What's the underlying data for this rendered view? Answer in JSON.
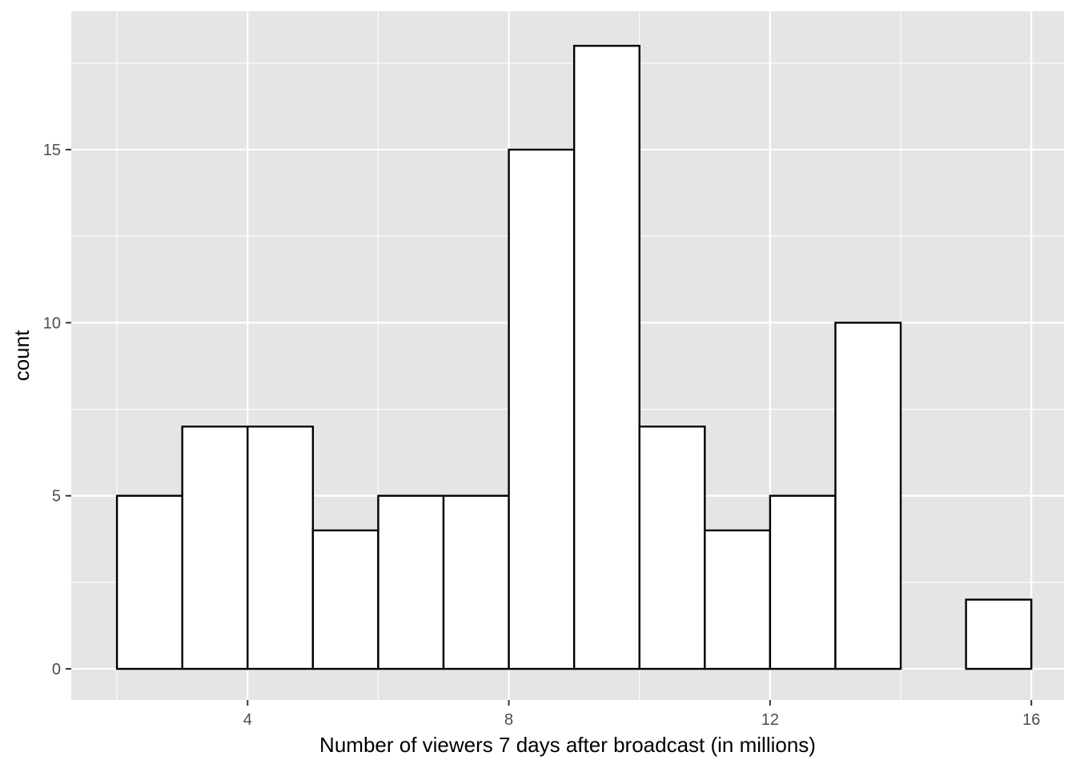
{
  "chart_data": {
    "type": "bar",
    "subtype": "histogram",
    "title": "",
    "xlabel": "Number of viewers 7 days after broadcast (in millions)",
    "ylabel": "count",
    "bins": [
      {
        "x0": 2,
        "x1": 3,
        "count": 5
      },
      {
        "x0": 3,
        "x1": 4,
        "count": 7
      },
      {
        "x0": 4,
        "x1": 5,
        "count": 7
      },
      {
        "x0": 5,
        "x1": 6,
        "count": 4
      },
      {
        "x0": 6,
        "x1": 7,
        "count": 5
      },
      {
        "x0": 7,
        "x1": 8,
        "count": 5
      },
      {
        "x0": 8,
        "x1": 9,
        "count": 15
      },
      {
        "x0": 9,
        "x1": 10,
        "count": 18
      },
      {
        "x0": 10,
        "x1": 11,
        "count": 7
      },
      {
        "x0": 11,
        "x1": 12,
        "count": 4
      },
      {
        "x0": 12,
        "x1": 13,
        "count": 5
      },
      {
        "x0": 13,
        "x1": 14,
        "count": 10
      },
      {
        "x0": 14,
        "x1": 15,
        "count": 0
      },
      {
        "x0": 15,
        "x1": 16,
        "count": 2
      }
    ],
    "xlim": [
      1.3,
      16.5
    ],
    "ylim": [
      -0.9,
      19.0
    ],
    "x_major_ticks": [
      4,
      8,
      12,
      16
    ],
    "x_minor_ticks": [
      2,
      6,
      10,
      14
    ],
    "y_major_ticks": [
      0,
      5,
      10,
      15
    ],
    "y_minor_ticks": [
      2.5,
      7.5,
      12.5,
      17.5
    ],
    "x_tick_labels": [
      "4",
      "8",
      "12",
      "16"
    ],
    "y_tick_labels": [
      "0",
      "5",
      "10",
      "15"
    ],
    "grid": true,
    "legend": "none",
    "colors": {
      "panel_background": "#e5e5e5",
      "grid_line": "#ffffff",
      "bar_fill": "#ffffff",
      "bar_outline": "#000000",
      "tick_label": "#4d4d4d",
      "tick_mark": "#333333",
      "axis_title": "#000000"
    }
  }
}
